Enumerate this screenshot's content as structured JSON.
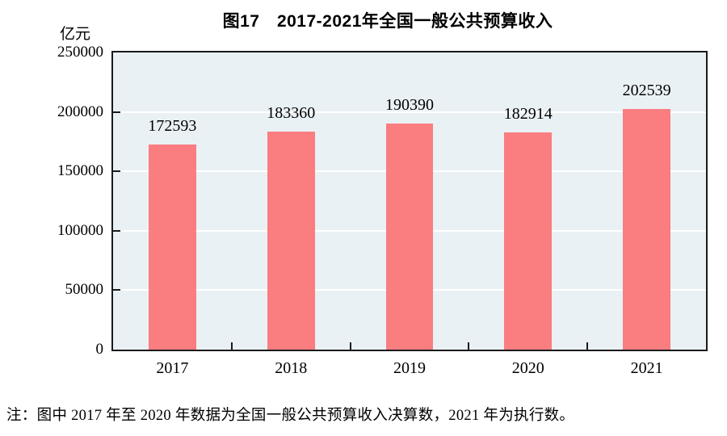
{
  "title": "图17　2017-2021年全国一般公共预算收入",
  "y_unit_label": "亿元",
  "note": "注：图中 2017 年至 2020 年数据为全国一般公共预算收入决算数，2021 年为执行数。",
  "colors": {
    "bar": "#FA7D80",
    "plot_background": "#EAF1F5",
    "gridline": "#FFFFFF",
    "axis_frame": "#1A1A1A",
    "text": "#000000"
  },
  "chart_data": {
    "type": "bar",
    "title": "图17　2017-2021年全国一般公共预算收入",
    "categories": [
      "2017",
      "2018",
      "2019",
      "2020",
      "2021"
    ],
    "values": [
      172593,
      183360,
      190390,
      182914,
      202539
    ],
    "data_labels_shown": true,
    "xlabel": "",
    "ylabel": "亿元",
    "ylim": [
      0,
      250000
    ],
    "yticks": [
      0,
      50000,
      100000,
      150000,
      200000,
      250000
    ],
    "grid": true,
    "legend": false,
    "bar_width_fraction": 0.4
  }
}
